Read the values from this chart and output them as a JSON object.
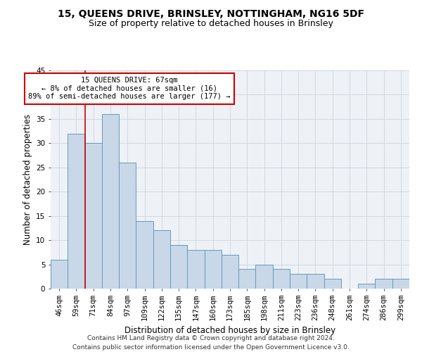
{
  "title1": "15, QUEENS DRIVE, BRINSLEY, NOTTINGHAM, NG16 5DF",
  "title2": "Size of property relative to detached houses in Brinsley",
  "xlabel": "Distribution of detached houses by size in Brinsley",
  "ylabel": "Number of detached properties",
  "categories": [
    "46sqm",
    "59sqm",
    "71sqm",
    "84sqm",
    "97sqm",
    "109sqm",
    "122sqm",
    "135sqm",
    "147sqm",
    "160sqm",
    "173sqm",
    "185sqm",
    "198sqm",
    "211sqm",
    "223sqm",
    "236sqm",
    "248sqm",
    "261sqm",
    "274sqm",
    "286sqm",
    "299sqm"
  ],
  "values": [
    6,
    32,
    30,
    36,
    26,
    14,
    12,
    9,
    8,
    8,
    7,
    4,
    5,
    4,
    3,
    3,
    2,
    0,
    1,
    2,
    2
  ],
  "bar_color": "#c8d8e8",
  "bar_edge_color": "#6699bb",
  "vline_x_idx": 1,
  "annotation_text": "15 QUEENS DRIVE: 67sqm\n← 8% of detached houses are smaller (16)\n89% of semi-detached houses are larger (177) →",
  "annotation_box_color": "#ffffff",
  "annotation_box_edge_color": "#cc0000",
  "grid_color": "#d0d8e0",
  "background_color": "#eef2f7",
  "ylim": [
    0,
    45
  ],
  "yticks": [
    0,
    5,
    10,
    15,
    20,
    25,
    30,
    35,
    40,
    45
  ],
  "footer": "Contains HM Land Registry data © Crown copyright and database right 2024.\nContains public sector information licensed under the Open Government Licence v3.0.",
  "title1_fontsize": 10,
  "title2_fontsize": 9,
  "xlabel_fontsize": 8.5,
  "ylabel_fontsize": 8.5,
  "footer_fontsize": 6.5,
  "tick_fontsize": 7.5,
  "ann_fontsize": 7.5
}
